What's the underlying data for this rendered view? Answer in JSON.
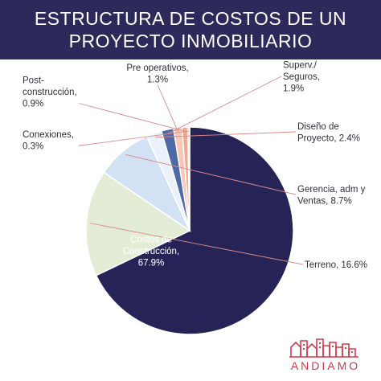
{
  "header": {
    "title_line1": "ESTRUCTURA DE COSTOS DE UN",
    "title_line2": "PROYECTO INMOBILIARIO"
  },
  "chart_data": {
    "type": "pie",
    "slices": [
      {
        "name": "Costos de Construcción",
        "label": [
          "Costos de",
          "Construcción,",
          "67.9%"
        ],
        "value": 67.9,
        "color": "#262457"
      },
      {
        "name": "Terreno",
        "label": [
          "Terreno, 16.6%"
        ],
        "value": 16.6,
        "color": "#e3edd6"
      },
      {
        "name": "Gerencia, adm y Ventas",
        "label": [
          "Gerencia, adm y",
          "Ventas, 8.7%"
        ],
        "value": 8.7,
        "color": "#d2e2f4"
      },
      {
        "name": "Diseño de Proyecto",
        "label": [
          "Diseño  de",
          "Proyecto, 2.4%"
        ],
        "value": 2.4,
        "color": "#ebf1fb"
      },
      {
        "name": "Superv./ Seguros",
        "label": [
          "Superv./",
          "Seguros,",
          "1.9%"
        ],
        "value": 1.9,
        "color": "#4d6aa6"
      },
      {
        "name": "Pre operativos",
        "label": [
          "Pre operativos,",
          "1.3%"
        ],
        "value": 1.3,
        "color": "#f6c8b7"
      },
      {
        "name": "Post-construcción",
        "label": [
          "Post-",
          "construcción,",
          "0.9%"
        ],
        "value": 0.9,
        "color": "#f3a893"
      },
      {
        "name": "Conexiones",
        "label": [
          "Conexiones,",
          "0.3%"
        ],
        "value": 0.3,
        "color": "#f6dcd2"
      }
    ]
  },
  "brand": {
    "name": "ANDIAMO",
    "accent": "#d7394a"
  }
}
